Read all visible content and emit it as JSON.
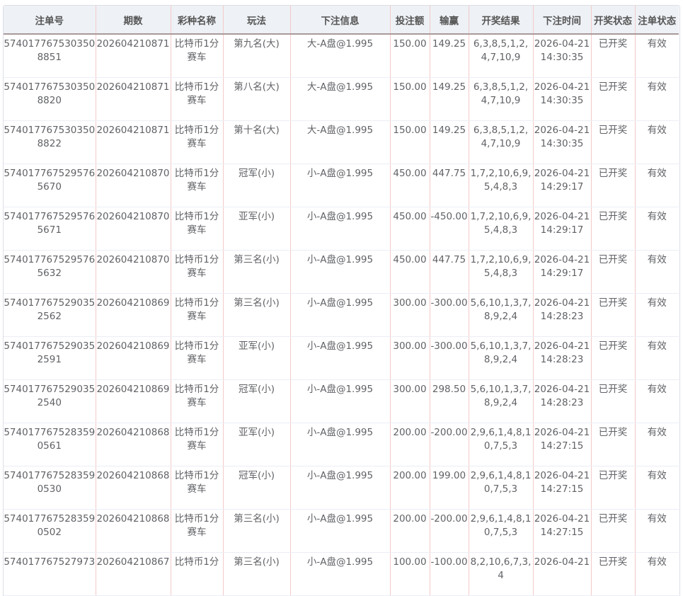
{
  "columns": [
    "注单号",
    "期数",
    "彩种名称",
    "玩法",
    "下注信息",
    "投注额",
    "输赢",
    "开奖结果",
    "下注时间",
    "开奖状态",
    "注单状态"
  ],
  "rows": [
    [
      "5740177675303508851",
      "202604210871",
      "比特币1分赛车",
      "第九名(大)",
      "大-A盘@1.995",
      "150.00",
      "149.25",
      "6,3,8,5,1,2,4,7,10,9",
      "2026-04-21 14:30:35",
      "已开奖",
      "有效"
    ],
    [
      "5740177675303508820",
      "202604210871",
      "比特币1分赛车",
      "第八名(大)",
      "大-A盘@1.995",
      "150.00",
      "149.25",
      "6,3,8,5,1,2,4,7,10,9",
      "2026-04-21 14:30:35",
      "已开奖",
      "有效"
    ],
    [
      "5740177675303508822",
      "202604210871",
      "比特币1分赛车",
      "第十名(大)",
      "大-A盘@1.995",
      "150.00",
      "149.25",
      "6,3,8,5,1,2,4,7,10,9",
      "2026-04-21 14:30:35",
      "已开奖",
      "有效"
    ],
    [
      "5740177675295765670",
      "202604210870",
      "比特币1分赛车",
      "冠军(小)",
      "小-A盘@1.995",
      "450.00",
      "447.75",
      "1,7,2,10,6,9,5,4,8,3",
      "2026-04-21 14:29:17",
      "已开奖",
      "有效"
    ],
    [
      "5740177675295765671",
      "202604210870",
      "比特币1分赛车",
      "亚军(小)",
      "小-A盘@1.995",
      "450.00",
      "-450.00",
      "1,7,2,10,6,9,5,4,8,3",
      "2026-04-21 14:29:17",
      "已开奖",
      "有效"
    ],
    [
      "5740177675295765632",
      "202604210870",
      "比特币1分赛车",
      "第三名(小)",
      "小-A盘@1.995",
      "450.00",
      "447.75",
      "1,7,2,10,6,9,5,4,8,3",
      "2026-04-21 14:29:17",
      "已开奖",
      "有效"
    ],
    [
      "5740177675290352562",
      "202604210869",
      "比特币1分赛车",
      "第三名(小)",
      "小-A盘@1.995",
      "300.00",
      "-300.00",
      "5,6,10,1,3,7,8,9,2,4",
      "2026-04-21 14:28:23",
      "已开奖",
      "有效"
    ],
    [
      "5740177675290352591",
      "202604210869",
      "比特币1分赛车",
      "亚军(小)",
      "小-A盘@1.995",
      "300.00",
      "-300.00",
      "5,6,10,1,3,7,8,9,2,4",
      "2026-04-21 14:28:23",
      "已开奖",
      "有效"
    ],
    [
      "5740177675290352540",
      "202604210869",
      "比特币1分赛车",
      "冠军(小)",
      "小-A盘@1.995",
      "300.00",
      "298.50",
      "5,6,10,1,3,7,8,9,2,4",
      "2026-04-21 14:28:23",
      "已开奖",
      "有效"
    ],
    [
      "5740177675283590561",
      "202604210868",
      "比特币1分赛车",
      "亚军(小)",
      "小-A盘@1.995",
      "200.00",
      "-200.00",
      "2,9,6,1,4,8,10,7,5,3",
      "2026-04-21 14:27:15",
      "已开奖",
      "有效"
    ],
    [
      "5740177675283590530",
      "202604210868",
      "比特币1分赛车",
      "冠军(小)",
      "小-A盘@1.995",
      "200.00",
      "199.00",
      "2,9,6,1,4,8,10,7,5,3",
      "2026-04-21 14:27:15",
      "已开奖",
      "有效"
    ],
    [
      "5740177675283590502",
      "202604210868",
      "比特币1分赛车",
      "第三名(小)",
      "小-A盘@1.995",
      "200.00",
      "-200.00",
      "2,9,6,1,4,8,10,7,5,3",
      "2026-04-21 14:27:15",
      "已开奖",
      "有效"
    ],
    [
      "574017767527973",
      "202604210867",
      "比特币1分",
      "第三名(小)",
      "小-A盘@1.995",
      "100.00",
      "-100.00",
      "8,2,10,6,7,3,4",
      "2026-04-21",
      "已开奖",
      "有效"
    ]
  ]
}
